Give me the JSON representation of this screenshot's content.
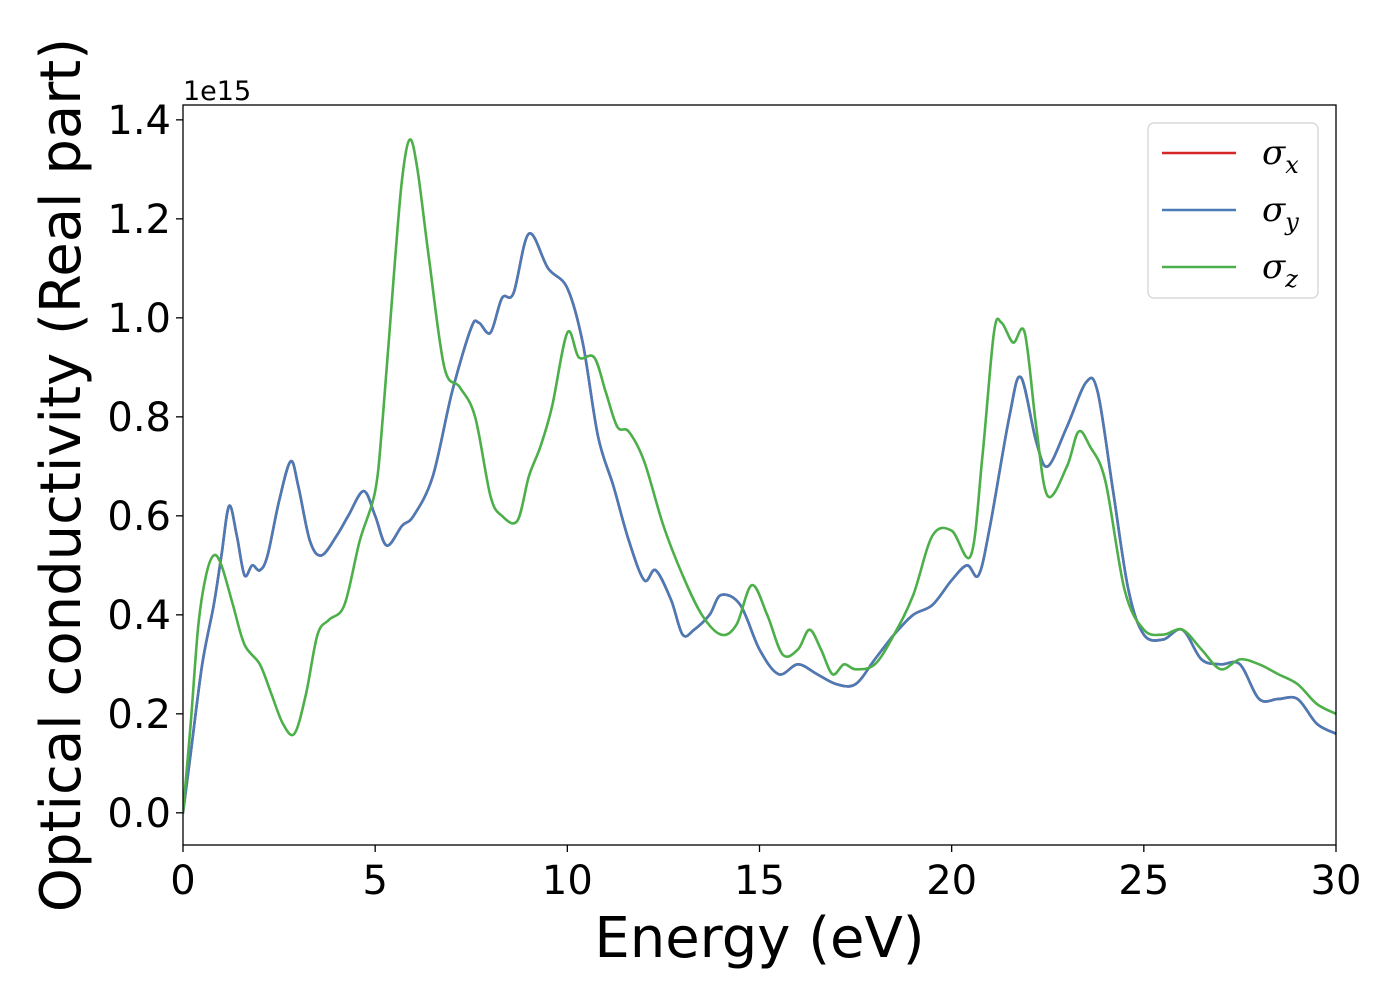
{
  "chart_data": {
    "type": "line",
    "title": "",
    "xlabel": "Energy (eV)",
    "ylabel": "Optical conductivity (Real part)",
    "y_offset_label": "1e15",
    "xlim": [
      0,
      30
    ],
    "ylim": [
      -0.065,
      1.43
    ],
    "xticks": [
      0,
      5,
      10,
      15,
      20,
      25,
      30
    ],
    "xtick_labels": [
      "0",
      "5",
      "10",
      "15",
      "20",
      "25",
      "30"
    ],
    "yticks": [
      0.0,
      0.2,
      0.4,
      0.6,
      0.8,
      1.0,
      1.2,
      1.4
    ],
    "ytick_labels": [
      "0.0",
      "0.2",
      "0.4",
      "0.6",
      "0.8",
      "1.0",
      "1.2",
      "1.4"
    ],
    "grid": false,
    "legend_position": "top-right",
    "series": [
      {
        "name": "σx",
        "sym": "σ",
        "sub": "x",
        "color": "#d62728",
        "x": [
          0,
          0.2,
          0.5,
          0.8,
          1.0,
          1.2,
          1.4,
          1.6,
          1.8,
          2.0,
          2.2,
          2.5,
          2.8,
          3.0,
          3.3,
          3.6,
          4.0,
          4.3,
          4.7,
          5.0,
          5.3,
          5.7,
          6.0,
          6.5,
          7.0,
          7.5,
          7.7,
          8.0,
          8.3,
          8.6,
          9.0,
          9.5,
          10.0,
          10.4,
          10.8,
          11.2,
          11.6,
          12.0,
          12.3,
          12.7,
          13.0,
          13.3,
          13.7,
          14.0,
          14.5,
          15.0,
          15.5,
          16.0,
          16.5,
          17.0,
          17.5,
          18.0,
          18.5,
          19.0,
          19.5,
          20.0,
          20.4,
          20.7,
          21.0,
          21.5,
          21.8,
          22.2,
          22.5,
          23.0,
          23.5,
          23.8,
          24.2,
          24.6,
          25.0,
          25.5,
          26.0,
          26.5,
          27.0,
          27.5,
          28.0,
          28.5,
          29.0,
          29.5,
          30.0
        ],
        "y": [
          0.0,
          0.12,
          0.3,
          0.42,
          0.52,
          0.62,
          0.56,
          0.48,
          0.5,
          0.49,
          0.52,
          0.63,
          0.71,
          0.66,
          0.55,
          0.52,
          0.56,
          0.6,
          0.65,
          0.6,
          0.54,
          0.58,
          0.6,
          0.68,
          0.85,
          0.98,
          0.99,
          0.97,
          1.04,
          1.05,
          1.17,
          1.1,
          1.06,
          0.95,
          0.76,
          0.66,
          0.55,
          0.47,
          0.49,
          0.43,
          0.36,
          0.37,
          0.4,
          0.44,
          0.42,
          0.33,
          0.28,
          0.3,
          0.28,
          0.26,
          0.26,
          0.31,
          0.36,
          0.4,
          0.42,
          0.47,
          0.5,
          0.48,
          0.58,
          0.8,
          0.88,
          0.75,
          0.7,
          0.78,
          0.87,
          0.85,
          0.65,
          0.45,
          0.36,
          0.35,
          0.37,
          0.31,
          0.3,
          0.3,
          0.23,
          0.23,
          0.23,
          0.18,
          0.16
        ]
      },
      {
        "name": "σy",
        "sym": "σ",
        "sub": "y",
        "color": "#4a7bb7",
        "x": [
          0,
          0.2,
          0.5,
          0.8,
          1.0,
          1.2,
          1.4,
          1.6,
          1.8,
          2.0,
          2.2,
          2.5,
          2.8,
          3.0,
          3.3,
          3.6,
          4.0,
          4.3,
          4.7,
          5.0,
          5.3,
          5.7,
          6.0,
          6.5,
          7.0,
          7.5,
          7.7,
          8.0,
          8.3,
          8.6,
          9.0,
          9.5,
          10.0,
          10.4,
          10.8,
          11.2,
          11.6,
          12.0,
          12.3,
          12.7,
          13.0,
          13.3,
          13.7,
          14.0,
          14.5,
          15.0,
          15.5,
          16.0,
          16.5,
          17.0,
          17.5,
          18.0,
          18.5,
          19.0,
          19.5,
          20.0,
          20.4,
          20.7,
          21.0,
          21.5,
          21.8,
          22.2,
          22.5,
          23.0,
          23.5,
          23.8,
          24.2,
          24.6,
          25.0,
          25.5,
          26.0,
          26.5,
          27.0,
          27.5,
          28.0,
          28.5,
          29.0,
          29.5,
          30.0
        ],
        "y": [
          0.0,
          0.12,
          0.3,
          0.42,
          0.52,
          0.62,
          0.56,
          0.48,
          0.5,
          0.49,
          0.52,
          0.63,
          0.71,
          0.66,
          0.55,
          0.52,
          0.56,
          0.6,
          0.65,
          0.6,
          0.54,
          0.58,
          0.6,
          0.68,
          0.85,
          0.98,
          0.99,
          0.97,
          1.04,
          1.05,
          1.17,
          1.1,
          1.06,
          0.95,
          0.76,
          0.66,
          0.55,
          0.47,
          0.49,
          0.43,
          0.36,
          0.37,
          0.4,
          0.44,
          0.42,
          0.33,
          0.28,
          0.3,
          0.28,
          0.26,
          0.26,
          0.31,
          0.36,
          0.4,
          0.42,
          0.47,
          0.5,
          0.48,
          0.58,
          0.8,
          0.88,
          0.75,
          0.7,
          0.78,
          0.87,
          0.85,
          0.65,
          0.45,
          0.36,
          0.35,
          0.37,
          0.31,
          0.3,
          0.3,
          0.23,
          0.23,
          0.23,
          0.18,
          0.16
        ]
      },
      {
        "name": "σz",
        "sym": "σ",
        "sub": "z",
        "color": "#4daf4a",
        "x": [
          0,
          0.2,
          0.4,
          0.6,
          0.8,
          1.0,
          1.3,
          1.6,
          2.0,
          2.3,
          2.6,
          2.9,
          3.2,
          3.5,
          3.8,
          4.2,
          4.6,
          5.0,
          5.2,
          5.5,
          5.7,
          5.9,
          6.1,
          6.4,
          6.8,
          7.2,
          7.6,
          8.0,
          8.3,
          8.7,
          9.0,
          9.3,
          9.6,
          10.0,
          10.3,
          10.7,
          11.0,
          11.3,
          11.6,
          12.0,
          12.5,
          13.0,
          13.5,
          14.0,
          14.4,
          14.8,
          15.2,
          15.6,
          16.0,
          16.3,
          16.6,
          16.9,
          17.2,
          17.5,
          18.0,
          18.5,
          19.0,
          19.5,
          20.0,
          20.5,
          20.8,
          21.1,
          21.3,
          21.6,
          21.9,
          22.2,
          22.5,
          23.0,
          23.3,
          23.6,
          24.0,
          24.5,
          25.0,
          25.5,
          26.0,
          26.5,
          27.0,
          27.5,
          28.0,
          28.5,
          29.0,
          29.5,
          30.0
        ],
        "y": [
          0.0,
          0.18,
          0.38,
          0.48,
          0.52,
          0.5,
          0.42,
          0.34,
          0.3,
          0.24,
          0.18,
          0.16,
          0.24,
          0.36,
          0.39,
          0.42,
          0.55,
          0.65,
          0.8,
          1.1,
          1.28,
          1.36,
          1.3,
          1.12,
          0.9,
          0.86,
          0.8,
          0.64,
          0.6,
          0.59,
          0.68,
          0.74,
          0.82,
          0.97,
          0.92,
          0.92,
          0.85,
          0.78,
          0.77,
          0.71,
          0.58,
          0.48,
          0.4,
          0.36,
          0.38,
          0.46,
          0.4,
          0.32,
          0.33,
          0.37,
          0.33,
          0.28,
          0.3,
          0.29,
          0.3,
          0.36,
          0.44,
          0.56,
          0.57,
          0.52,
          0.72,
          0.97,
          0.99,
          0.95,
          0.97,
          0.78,
          0.64,
          0.7,
          0.77,
          0.74,
          0.67,
          0.45,
          0.37,
          0.36,
          0.37,
          0.33,
          0.29,
          0.31,
          0.3,
          0.28,
          0.26,
          0.22,
          0.2
        ]
      }
    ]
  }
}
